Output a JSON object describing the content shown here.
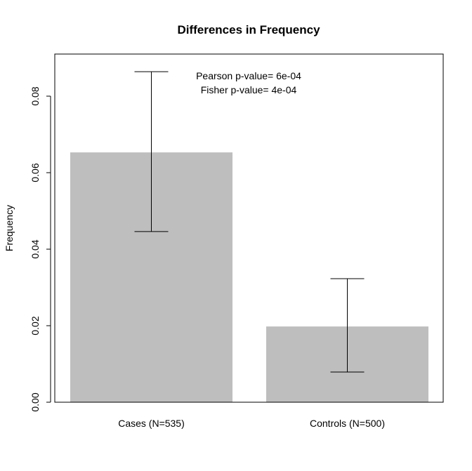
{
  "chart_data": {
    "type": "bar",
    "title": "Differences in Frequency",
    "xlabel": "",
    "ylabel": "Frequency",
    "categories": [
      "Cases (N=535)",
      "Controls (N=500)"
    ],
    "values": [
      0.0653,
      0.0198
    ],
    "error_lower": [
      0.0446,
      0.0079
    ],
    "error_upper": [
      0.0864,
      0.0323
    ],
    "ylim": [
      0,
      0.091
    ],
    "yticks": [
      0,
      0.02,
      0.04,
      0.06,
      0.08
    ],
    "ytick_labels": [
      "0.00",
      "0.02",
      "0.04",
      "0.06",
      "0.08"
    ],
    "annotations": [
      "Pearson p-value= 6e-04",
      "Fisher p-value= 4e-04"
    ],
    "bar_color": "#bebebe",
    "grid": false
  }
}
